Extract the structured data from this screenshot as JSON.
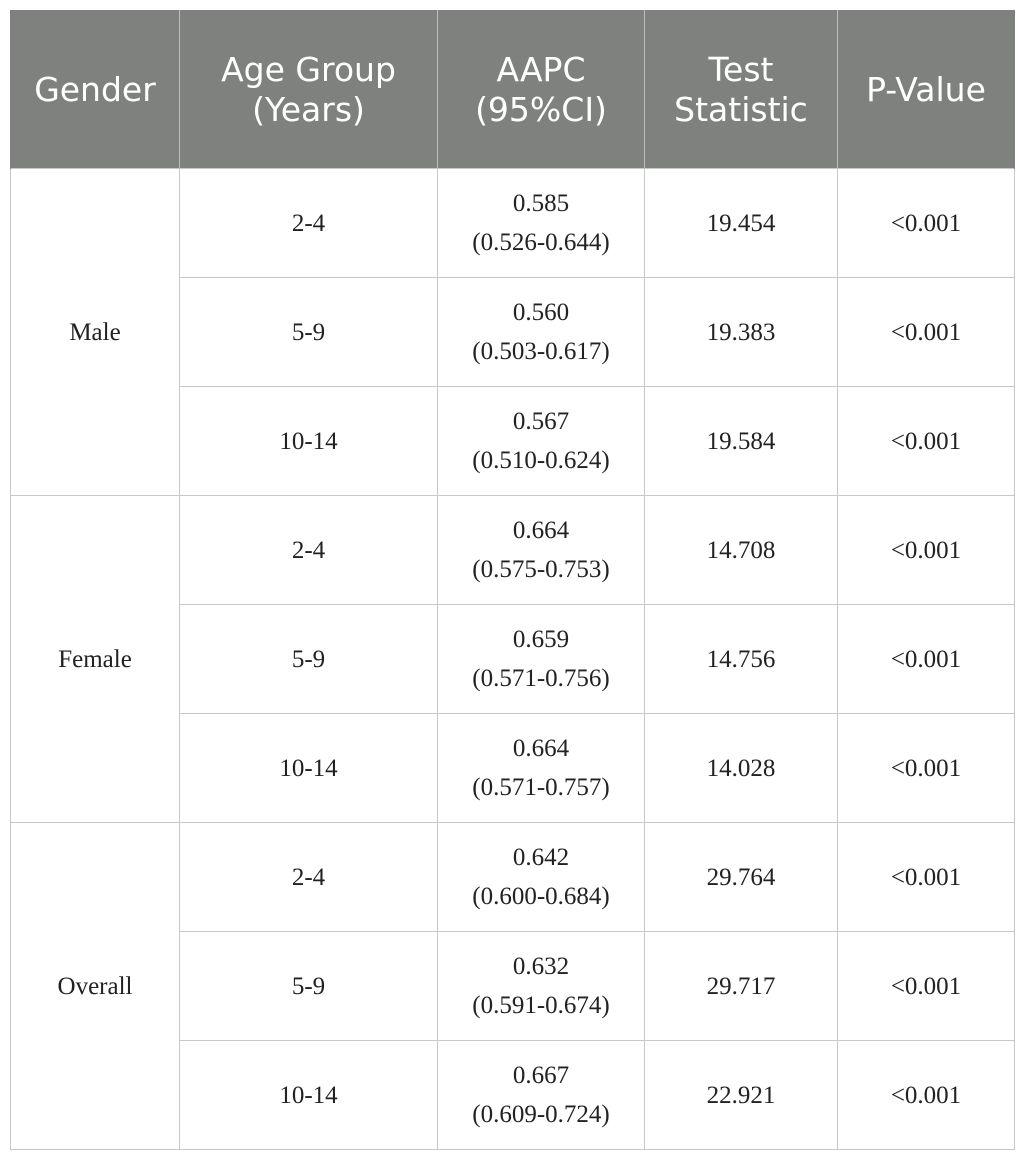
{
  "table": {
    "headers": {
      "gender": "Gender",
      "age_group": "Age Group (Years)",
      "aapc": "AAPC (95%CI)",
      "test_statistic": "Test Statistic",
      "p_value": "P-Value"
    },
    "groups": [
      {
        "gender": "Male",
        "rows": [
          {
            "age": "2-4",
            "aapc": "0.585",
            "ci": "(0.526-0.644)",
            "stat": "19.454",
            "p": "<0.001"
          },
          {
            "age": "5-9",
            "aapc": "0.560",
            "ci": "(0.503-0.617)",
            "stat": "19.383",
            "p": "<0.001"
          },
          {
            "age": "10-14",
            "aapc": "0.567",
            "ci": "(0.510-0.624)",
            "stat": "19.584",
            "p": "<0.001"
          }
        ]
      },
      {
        "gender": "Female",
        "rows": [
          {
            "age": "2-4",
            "aapc": "0.664",
            "ci": "(0.575-0.753)",
            "stat": "14.708",
            "p": "<0.001"
          },
          {
            "age": "5-9",
            "aapc": "0.659",
            "ci": "(0.571-0.756)",
            "stat": "14.756",
            "p": "<0.001"
          },
          {
            "age": "10-14",
            "aapc": "0.664",
            "ci": "(0.571-0.757)",
            "stat": "14.028",
            "p": "<0.001"
          }
        ]
      },
      {
        "gender": "Overall",
        "rows": [
          {
            "age": "2-4",
            "aapc": "0.642",
            "ci": "(0.600-0.684)",
            "stat": "29.764",
            "p": "<0.001"
          },
          {
            "age": "5-9",
            "aapc": "0.632",
            "ci": "(0.591-0.674)",
            "stat": "29.717",
            "p": "<0.001"
          },
          {
            "age": "10-14",
            "aapc": "0.667",
            "ci": "(0.609-0.724)",
            "stat": "22.921",
            "p": "<0.001"
          }
        ]
      }
    ]
  }
}
